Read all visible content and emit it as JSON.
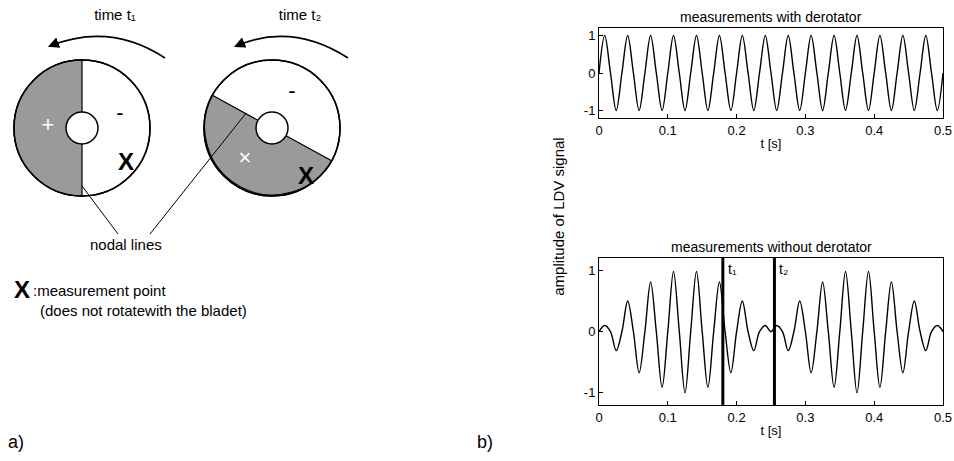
{
  "panel_a": {
    "label": "a)",
    "disks": [
      {
        "time_label": "time t₁",
        "positive_sign": "+",
        "negative_sign": "-",
        "point": "X"
      },
      {
        "time_label": "time t₂",
        "negative_sign": "-",
        "cross": "×",
        "point": "X"
      }
    ],
    "nodal_label": "nodal lines",
    "legend": {
      "symbol": "X",
      "text": ":measurement point",
      "note": "(does not rotatewith the bladet)"
    }
  },
  "panel_b_label": "b)",
  "y_label": "amplitude of LDV signal",
  "chart_data": [
    {
      "type": "line",
      "title": "measurements with derotator",
      "x_label": "t [s]",
      "color": "#000000",
      "line_style": "spline",
      "grid": false,
      "xlim": [
        0,
        0.5
      ],
      "xticks": [
        0,
        0.1,
        0.2,
        0.3,
        0.4,
        0.5
      ],
      "ylim": [
        -1.2,
        1.2
      ],
      "yticks": [
        -1,
        0,
        1
      ],
      "x": [
        0,
        0.0083,
        0.0167,
        0.025,
        0.0333,
        0.0417,
        0.05,
        0.0583,
        0.0667,
        0.075,
        0.0833,
        0.0917,
        0.1,
        0.1083,
        0.1167,
        0.125,
        0.1333,
        0.1417,
        0.15,
        0.1583,
        0.1667,
        0.175,
        0.1833,
        0.1917,
        0.2,
        0.2083,
        0.2167,
        0.225,
        0.2333,
        0.2417,
        0.25,
        0.2583,
        0.2667,
        0.275,
        0.2833,
        0.2917,
        0.3,
        0.3083,
        0.3167,
        0.325,
        0.3333,
        0.3417,
        0.35,
        0.3583,
        0.3667,
        0.375,
        0.3833,
        0.3917,
        0.4,
        0.4083,
        0.4167,
        0.425,
        0.4333,
        0.4417,
        0.45,
        0.4583,
        0.4667,
        0.475,
        0.4833,
        0.4917,
        0.5
      ],
      "values": [
        0,
        1,
        0,
        -1,
        0,
        1,
        0,
        -1,
        0,
        1,
        0,
        -1,
        0,
        1,
        0,
        -1,
        0,
        1,
        0,
        -1,
        0,
        1,
        0,
        -1,
        0,
        1,
        0,
        -1,
        0,
        1,
        0,
        -1,
        0,
        1,
        0,
        -1,
        0,
        1,
        0,
        -1,
        0,
        1,
        0,
        -1,
        0,
        1,
        0,
        -1,
        0,
        1,
        0,
        -1,
        0,
        1,
        0,
        -1,
        0,
        1,
        0,
        -1,
        0
      ]
    },
    {
      "type": "line",
      "title": "measurements without derotator",
      "x_label": "t [s]",
      "color": "#000000",
      "line_style": "spline",
      "grid": false,
      "xlim": [
        0,
        0.5
      ],
      "xticks": [
        0,
        0.1,
        0.2,
        0.3,
        0.4,
        0.5
      ],
      "ylim": [
        -1.2,
        1.2
      ],
      "yticks": [
        -1,
        0,
        1
      ],
      "x": [
        0,
        0.0083,
        0.0167,
        0.025,
        0.0333,
        0.0417,
        0.05,
        0.0583,
        0.0667,
        0.075,
        0.0833,
        0.0917,
        0.1,
        0.1083,
        0.1167,
        0.125,
        0.1333,
        0.1417,
        0.15,
        0.1583,
        0.1667,
        0.175,
        0.1833,
        0.1917,
        0.2,
        0.2083,
        0.2167,
        0.225,
        0.2333,
        0.2417,
        0.25,
        0.2583,
        0.2667,
        0.275,
        0.2833,
        0.2917,
        0.3,
        0.3083,
        0.3167,
        0.325,
        0.3333,
        0.3417,
        0.35,
        0.3583,
        0.3667,
        0.375,
        0.3833,
        0.3917,
        0.4,
        0.4083,
        0.4167,
        0.425,
        0.4333,
        0.4417,
        0.45,
        0.4583,
        0.4667,
        0.475,
        0.4833,
        0.4917,
        0.5
      ],
      "values": [
        0,
        0.1,
        0,
        -0.31,
        0,
        0.5,
        0,
        -0.67,
        0,
        0.81,
        0,
        -0.91,
        0,
        0.98,
        0,
        -1,
        0,
        0.98,
        0,
        -0.91,
        0,
        0.81,
        0,
        -0.67,
        0,
        0.5,
        0,
        -0.31,
        0,
        0.1,
        0,
        0.1,
        0,
        -0.31,
        0,
        0.5,
        0,
        -0.67,
        0,
        0.81,
        0,
        -0.91,
        0,
        0.98,
        0,
        -1,
        0,
        0.98,
        0,
        -0.91,
        0,
        0.81,
        0,
        -0.67,
        0,
        0.5,
        0,
        -0.31,
        0,
        0.1,
        0
      ],
      "annotations": [
        {
          "text": "t₁",
          "x": 0.18
        },
        {
          "text": "t₂",
          "x": 0.255
        }
      ]
    }
  ]
}
